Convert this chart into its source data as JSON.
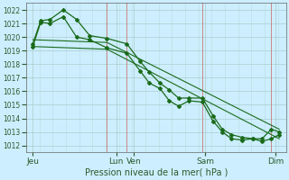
{
  "title": "",
  "xlabel": "Pression niveau de la mer( hPa )",
  "bg_color": "#cceeff",
  "grid_color": "#aacccc",
  "grid_color_minor": "#bbdddd",
  "line_color": "#1a6b1a",
  "vline_color": "#cc8888",
  "ylim": [
    1011.5,
    1022.5
  ],
  "yticks": [
    1012,
    1013,
    1014,
    1015,
    1016,
    1017,
    1018,
    1019,
    1020,
    1021,
    1022
  ],
  "xlim": [
    -0.3,
    19.3
  ],
  "xtick_labels": [
    "Jeu",
    "Lun",
    "Ven",
    "Sam",
    "Dim"
  ],
  "xtick_positions": [
    0.2,
    6.5,
    7.8,
    13.2,
    18.5
  ],
  "vlines": [
    5.8,
    7.3,
    13.0,
    18.2
  ],
  "line1_x": [
    0.2,
    0.8,
    1.5,
    2.5,
    3.5,
    4.5,
    5.8,
    7.3,
    8.3,
    9.0,
    9.8,
    10.5,
    11.2,
    12.0,
    13.0,
    13.8,
    14.5,
    15.2,
    16.0,
    16.8,
    17.5,
    18.2,
    18.8
  ],
  "line1_y": [
    1019.3,
    1021.1,
    1021.0,
    1021.5,
    1020.0,
    1019.8,
    1019.2,
    1018.8,
    1017.5,
    1016.6,
    1016.2,
    1015.3,
    1014.9,
    1015.3,
    1015.2,
    1013.8,
    1013.0,
    1012.5,
    1012.4,
    1012.5,
    1012.3,
    1012.5,
    1012.8
  ],
  "line2_x": [
    0.2,
    0.8,
    1.5,
    2.5,
    3.5,
    4.5,
    5.8,
    7.3,
    8.3,
    9.0,
    9.8,
    10.5,
    11.2,
    12.0,
    13.0,
    13.8,
    14.5,
    15.2,
    16.0,
    16.8,
    17.5,
    18.2,
    18.8
  ],
  "line2_y": [
    1019.5,
    1021.2,
    1021.3,
    1022.0,
    1021.3,
    1020.1,
    1019.9,
    1019.5,
    1018.2,
    1017.4,
    1016.6,
    1016.1,
    1015.5,
    1015.5,
    1015.5,
    1014.2,
    1013.2,
    1012.8,
    1012.6,
    1012.5,
    1012.5,
    1013.2,
    1013.0
  ],
  "line3_x": [
    0.2,
    5.8,
    18.8
  ],
  "line3_y": [
    1019.3,
    1019.1,
    1012.5
  ],
  "line4_x": [
    0.2,
    5.8,
    18.8
  ],
  "line4_y": [
    1019.8,
    1019.6,
    1013.2
  ],
  "ylabel_fontsize": 5.5,
  "xlabel_fontsize": 7,
  "ytick_fontsize": 5.5,
  "xtick_fontsize": 6.5
}
